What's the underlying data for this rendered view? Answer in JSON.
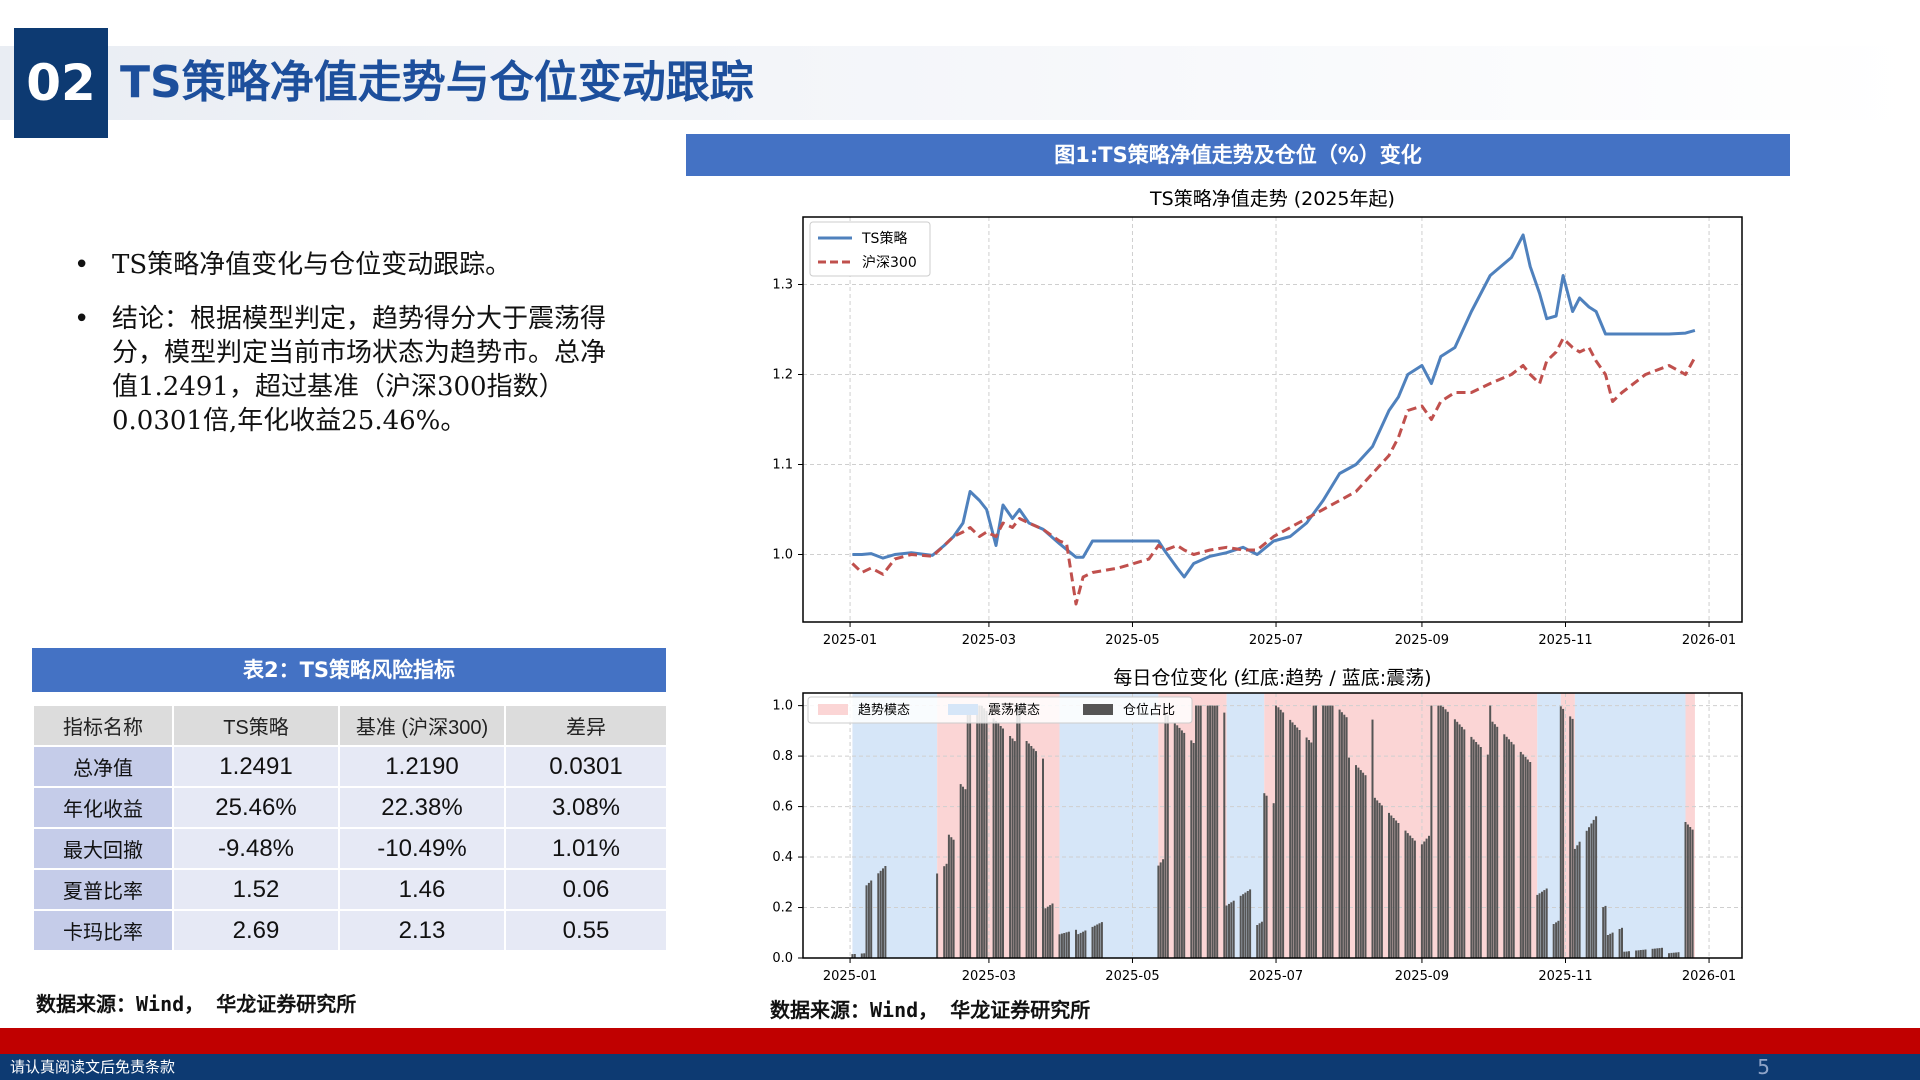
{
  "header": {
    "number": "02",
    "title": "TS策略净值走势与仓位变动跟踪"
  },
  "bullets": [
    "TS策略净值变化与仓位变动跟踪。",
    "结论：根据模型判定，趋势得分大于震荡得分，模型判定当前市场状态为趋势市。总净值1.2491，超过基准（沪深300指数）0.0301倍,年化收益25.46%。"
  ],
  "table": {
    "title": "表2：TS策略风险指标",
    "columns": [
      "指标名称",
      "TS策略",
      "基准 (沪深300)",
      "差异"
    ],
    "rows": [
      [
        "总净值",
        "1.2491",
        "1.2190",
        "0.0301"
      ],
      [
        "年化收益",
        "25.46%",
        "22.38%",
        "3.08%"
      ],
      [
        "最大回撤",
        "-9.48%",
        "-10.49%",
        "1.01%"
      ],
      [
        "夏普比率",
        "1.52",
        "1.46",
        "0.06"
      ],
      [
        "卡玛比率",
        "2.69",
        "2.13",
        "0.55"
      ]
    ]
  },
  "left_source": "数据来源：Wind， 华龙证券研究所",
  "figure": {
    "title": "图1:TS策略净值走势及仓位（%）变化",
    "source": "数据来源：Wind， 华龙证券研究所"
  },
  "colors": {
    "ts": "#4f81bd",
    "hs300": "#c0504d",
    "trend": "#fbd5d5",
    "osc": "#d6e6f8",
    "bar": "#555555"
  },
  "chart_data": [
    {
      "type": "line",
      "title": "TS策略净值走势 (2025年起)",
      "x_ticks": [
        "2025-01",
        "2025-03",
        "2025-05",
        "2025-07",
        "2025-09",
        "2025-11",
        "2026-01"
      ],
      "x_range": [
        "2024-12-12",
        "2026-01-15"
      ],
      "y_ticks": [
        "1.0",
        "1.1",
        "1.2",
        "1.3"
      ],
      "ylim": [
        0.925,
        1.375
      ],
      "grid": true,
      "legend_position": "top-left",
      "series": [
        {
          "name": "TS策略",
          "style": "solid",
          "points": [
            [
              "2025-01-02",
              1.0
            ],
            [
              "2025-01-06",
              1.0
            ],
            [
              "2025-01-10",
              1.001
            ],
            [
              "2025-01-15",
              0.996
            ],
            [
              "2025-01-20",
              1.0
            ],
            [
              "2025-01-27",
              1.002
            ],
            [
              "2025-02-05",
              0.999
            ],
            [
              "2025-02-10",
              1.01
            ],
            [
              "2025-02-14",
              1.02
            ],
            [
              "2025-02-18",
              1.035
            ],
            [
              "2025-02-21",
              1.07
            ],
            [
              "2025-02-25",
              1.06
            ],
            [
              "2025-02-28",
              1.05
            ],
            [
              "2025-03-04",
              1.01
            ],
            [
              "2025-03-07",
              1.055
            ],
            [
              "2025-03-11",
              1.04
            ],
            [
              "2025-03-14",
              1.05
            ],
            [
              "2025-03-18",
              1.035
            ],
            [
              "2025-03-24",
              1.028
            ],
            [
              "2025-03-31",
              1.012
            ],
            [
              "2025-04-07",
              0.997
            ],
            [
              "2025-04-10",
              0.997
            ],
            [
              "2025-04-14",
              1.015
            ],
            [
              "2025-04-25",
              1.015
            ],
            [
              "2025-05-08",
              1.015
            ],
            [
              "2025-05-12",
              1.015
            ],
            [
              "2025-05-15",
              1.003
            ],
            [
              "2025-05-20",
              0.985
            ],
            [
              "2025-05-23",
              0.975
            ],
            [
              "2025-05-27",
              0.99
            ],
            [
              "2025-06-03",
              0.998
            ],
            [
              "2025-06-10",
              1.002
            ],
            [
              "2025-06-17",
              1.008
            ],
            [
              "2025-06-23",
              1.0
            ],
            [
              "2025-06-30",
              1.015
            ],
            [
              "2025-07-07",
              1.02
            ],
            [
              "2025-07-14",
              1.035
            ],
            [
              "2025-07-21",
              1.06
            ],
            [
              "2025-07-28",
              1.09
            ],
            [
              "2025-08-04",
              1.1
            ],
            [
              "2025-08-11",
              1.12
            ],
            [
              "2025-08-18",
              1.16
            ],
            [
              "2025-08-22",
              1.175
            ],
            [
              "2025-08-26",
              1.2
            ],
            [
              "2025-09-01",
              1.21
            ],
            [
              "2025-09-05",
              1.19
            ],
            [
              "2025-09-09",
              1.22
            ],
            [
              "2025-09-15",
              1.23
            ],
            [
              "2025-09-22",
              1.27
            ],
            [
              "2025-09-30",
              1.31
            ],
            [
              "2025-10-09",
              1.33
            ],
            [
              "2025-10-14",
              1.355
            ],
            [
              "2025-10-17",
              1.32
            ],
            [
              "2025-10-21",
              1.29
            ],
            [
              "2025-10-24",
              1.262
            ],
            [
              "2025-10-28",
              1.265
            ],
            [
              "2025-10-31",
              1.31
            ],
            [
              "2025-11-04",
              1.27
            ],
            [
              "2025-11-07",
              1.285
            ],
            [
              "2025-11-11",
              1.275
            ],
            [
              "2025-11-14",
              1.27
            ],
            [
              "2025-11-18",
              1.245
            ],
            [
              "2025-11-25",
              1.245
            ],
            [
              "2025-12-05",
              1.245
            ],
            [
              "2025-12-15",
              1.245
            ],
            [
              "2025-12-22",
              1.246
            ],
            [
              "2025-12-26",
              1.249
            ]
          ]
        },
        {
          "name": "沪深300",
          "style": "dashed",
          "points": [
            [
              "2025-01-02",
              0.99
            ],
            [
              "2025-01-06",
              0.98
            ],
            [
              "2025-01-10",
              0.985
            ],
            [
              "2025-01-15",
              0.978
            ],
            [
              "2025-01-20",
              0.995
            ],
            [
              "2025-01-27",
              1.0
            ],
            [
              "2025-02-05",
              0.998
            ],
            [
              "2025-02-10",
              1.01
            ],
            [
              "2025-02-14",
              1.02
            ],
            [
              "2025-02-18",
              1.025
            ],
            [
              "2025-02-21",
              1.03
            ],
            [
              "2025-02-25",
              1.02
            ],
            [
              "2025-02-28",
              1.025
            ],
            [
              "2025-03-04",
              1.02
            ],
            [
              "2025-03-07",
              1.035
            ],
            [
              "2025-03-11",
              1.03
            ],
            [
              "2025-03-14",
              1.04
            ],
            [
              "2025-03-18",
              1.035
            ],
            [
              "2025-03-24",
              1.028
            ],
            [
              "2025-03-31",
              1.015
            ],
            [
              "2025-04-03",
              1.012
            ],
            [
              "2025-04-07",
              0.945
            ],
            [
              "2025-04-10",
              0.975
            ],
            [
              "2025-04-14",
              0.98
            ],
            [
              "2025-04-25",
              0.985
            ],
            [
              "2025-05-08",
              0.995
            ],
            [
              "2025-05-12",
              1.01
            ],
            [
              "2025-05-15",
              1.005
            ],
            [
              "2025-05-20",
              1.01
            ],
            [
              "2025-05-23",
              1.005
            ],
            [
              "2025-05-27",
              1.0
            ],
            [
              "2025-06-03",
              1.005
            ],
            [
              "2025-06-10",
              1.008
            ],
            [
              "2025-06-17",
              1.005
            ],
            [
              "2025-06-23",
              1.005
            ],
            [
              "2025-06-30",
              1.02
            ],
            [
              "2025-07-07",
              1.03
            ],
            [
              "2025-07-14",
              1.04
            ],
            [
              "2025-07-21",
              1.05
            ],
            [
              "2025-07-28",
              1.06
            ],
            [
              "2025-08-04",
              1.07
            ],
            [
              "2025-08-11",
              1.09
            ],
            [
              "2025-08-18",
              1.11
            ],
            [
              "2025-08-22",
              1.13
            ],
            [
              "2025-08-26",
              1.16
            ],
            [
              "2025-09-01",
              1.165
            ],
            [
              "2025-09-05",
              1.15
            ],
            [
              "2025-09-09",
              1.17
            ],
            [
              "2025-09-15",
              1.18
            ],
            [
              "2025-09-22",
              1.18
            ],
            [
              "2025-09-30",
              1.19
            ],
            [
              "2025-10-09",
              1.2
            ],
            [
              "2025-10-14",
              1.21
            ],
            [
              "2025-10-17",
              1.2
            ],
            [
              "2025-10-21",
              1.19
            ],
            [
              "2025-10-24",
              1.215
            ],
            [
              "2025-10-28",
              1.225
            ],
            [
              "2025-10-31",
              1.24
            ],
            [
              "2025-11-04",
              1.23
            ],
            [
              "2025-11-07",
              1.225
            ],
            [
              "2025-11-11",
              1.23
            ],
            [
              "2025-11-14",
              1.215
            ],
            [
              "2025-11-18",
              1.2
            ],
            [
              "2025-11-21",
              1.17
            ],
            [
              "2025-11-25",
              1.18
            ],
            [
              "2025-12-05",
              1.2
            ],
            [
              "2025-12-15",
              1.21
            ],
            [
              "2025-12-22",
              1.2
            ],
            [
              "2025-12-26",
              1.219
            ]
          ]
        }
      ]
    },
    {
      "type": "bar",
      "title": "每日仓位变化 (红底:趋势 / 蓝底:震荡)",
      "x_ticks": [
        "2025-01",
        "2025-03",
        "2025-05",
        "2025-07",
        "2025-09",
        "2025-11",
        "2026-01"
      ],
      "x_range": [
        "2024-12-12",
        "2026-01-15"
      ],
      "y_ticks": [
        "0.0",
        "0.2",
        "0.4",
        "0.6",
        "0.8",
        "1.0"
      ],
      "ylim": [
        0.0,
        1.05
      ],
      "grid": true,
      "legend_position": "top-left",
      "legend": [
        "趋势模态",
        "震荡模态",
        "仓位占比"
      ],
      "regime_periods": [
        {
          "start": "2025-01-02",
          "end": "2025-02-07",
          "mode": "震荡"
        },
        {
          "start": "2025-02-07",
          "end": "2025-03-31",
          "mode": "趋势"
        },
        {
          "start": "2025-03-31",
          "end": "2025-05-12",
          "mode": "震荡"
        },
        {
          "start": "2025-05-12",
          "end": "2025-06-10",
          "mode": "趋势"
        },
        {
          "start": "2025-06-10",
          "end": "2025-06-26",
          "mode": "震荡"
        },
        {
          "start": "2025-06-26",
          "end": "2025-10-20",
          "mode": "趋势"
        },
        {
          "start": "2025-10-20",
          "end": "2025-10-30",
          "mode": "震荡"
        },
        {
          "start": "2025-10-30",
          "end": "2025-11-05",
          "mode": "趋势"
        },
        {
          "start": "2025-11-05",
          "end": "2025-12-22",
          "mode": "震荡"
        },
        {
          "start": "2025-12-22",
          "end": "2025-12-26",
          "mode": "趋势"
        }
      ],
      "position_segments": [
        {
          "start": "2025-01-02",
          "end": "2025-01-08",
          "value": 0.02
        },
        {
          "start": "2025-01-08",
          "end": "2025-01-17",
          "value": 0.3
        },
        {
          "start": "2025-01-17",
          "end": "2025-02-07",
          "value": 0.0
        },
        {
          "start": "2025-02-07",
          "end": "2025-02-12",
          "value": 0.3
        },
        {
          "start": "2025-02-12",
          "end": "2025-02-20",
          "value": 0.6
        },
        {
          "start": "2025-02-20",
          "end": "2025-03-15",
          "value": 1.0
        },
        {
          "start": "2025-03-15",
          "end": "2025-03-25",
          "value": 0.8
        },
        {
          "start": "2025-03-25",
          "end": "2025-03-31",
          "value": 0.2
        },
        {
          "start": "2025-03-31",
          "end": "2025-04-08",
          "value": 0.08
        },
        {
          "start": "2025-04-08",
          "end": "2025-04-20",
          "value": 0.15
        },
        {
          "start": "2025-04-20",
          "end": "2025-05-12",
          "value": 0.0
        },
        {
          "start": "2025-05-12",
          "end": "2025-05-15",
          "value": 0.4
        },
        {
          "start": "2025-05-15",
          "end": "2025-06-10",
          "value": 1.0
        },
        {
          "start": "2025-06-10",
          "end": "2025-06-26",
          "value": 0.2
        },
        {
          "start": "2025-06-26",
          "end": "2025-07-01",
          "value": 0.6
        },
        {
          "start": "2025-07-01",
          "end": "2025-08-01",
          "value": 1.0
        },
        {
          "start": "2025-08-01",
          "end": "2025-08-12",
          "value": 0.85
        },
        {
          "start": "2025-08-12",
          "end": "2025-09-01",
          "value": 0.55
        },
        {
          "start": "2025-09-01",
          "end": "2025-09-05",
          "value": 0.35
        },
        {
          "start": "2025-09-05",
          "end": "2025-10-01",
          "value": 0.95
        },
        {
          "start": "2025-10-01",
          "end": "2025-10-20",
          "value": 0.85
        },
        {
          "start": "2025-10-20",
          "end": "2025-10-30",
          "value": 0.2
        },
        {
          "start": "2025-10-30",
          "end": "2025-11-05",
          "value": 0.95
        },
        {
          "start": "2025-11-05",
          "end": "2025-11-15",
          "value": 0.45
        },
        {
          "start": "2025-11-15",
          "end": "2025-11-26",
          "value": 0.15
        },
        {
          "start": "2025-11-26",
          "end": "2025-12-22",
          "value": 0.03
        },
        {
          "start": "2025-12-22",
          "end": "2025-12-26",
          "value": 0.52
        }
      ]
    }
  ],
  "footer": {
    "disclaimer": "请认真阅读文后免责条款",
    "page": "5"
  }
}
